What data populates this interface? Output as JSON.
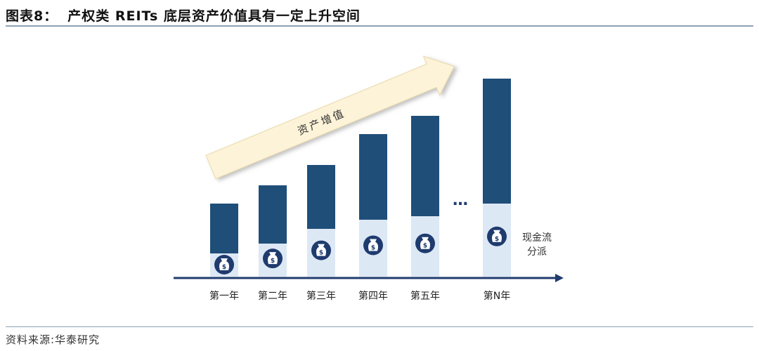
{
  "title": {
    "label": "图表8：",
    "text": "产权类 REITs 底层资产价值具有一定上升空间"
  },
  "source": "资料来源:华泰研究",
  "arrow_label": "资产增值",
  "ellipsis": "…",
  "side_label": {
    "line1": "现金流",
    "line2": "分派"
  },
  "colors": {
    "asset": "#1f4e79",
    "cashflow": "#dde8f5",
    "icon": "#1f3b6e",
    "arrow_fill": "#fdf3d8",
    "axis": "#1f3b6e"
  },
  "chart_data": {
    "type": "bar",
    "categories": [
      "第一年",
      "第二年",
      "第三年",
      "第四年",
      "第五年",
      "第N年"
    ],
    "series": [
      {
        "name": "现金流分派",
        "values": [
          33,
          47,
          68,
          81,
          86,
          104
        ]
      },
      {
        "name": "资产价值",
        "values": [
          71,
          83,
          91,
          122,
          143,
          178
        ]
      }
    ],
    "ylim": [
      0,
      300
    ]
  }
}
